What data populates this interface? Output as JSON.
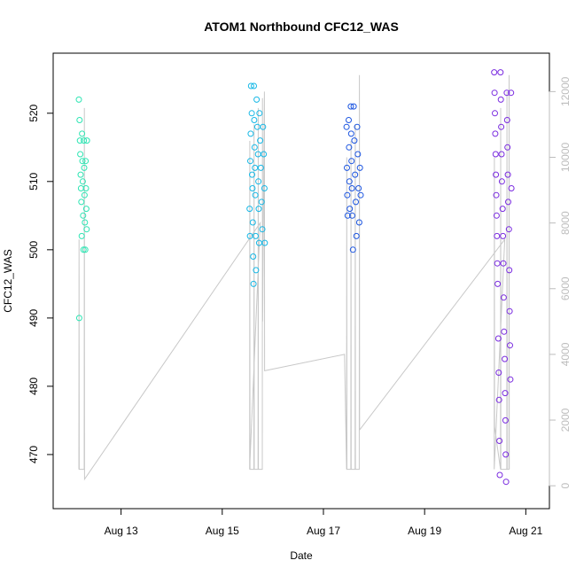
{
  "chart_data": {
    "type": "scatter",
    "title": "ATOM1 Northbound CFC12_WAS",
    "xlabel": "Date",
    "ylabel": "CFC12_WAS",
    "xlim": [
      "2016-08-11T20:00",
      "2016-08-21T07:00"
    ],
    "ylim": [
      463.5,
      527.5
    ],
    "y_ticks": [
      470,
      480,
      490,
      500,
      510,
      520
    ],
    "x_ticks": [
      {
        "label": "Aug 13",
        "date": "2016-08-13"
      },
      {
        "label": "Aug 15",
        "date": "2016-08-15"
      },
      {
        "label": "Aug 17",
        "date": "2016-08-17"
      },
      {
        "label": "Aug 19",
        "date": "2016-08-19"
      },
      {
        "label": "Aug 21",
        "date": "2016-08-21"
      }
    ],
    "y2_ticks": [
      0,
      2000,
      4000,
      6000,
      8000,
      10000,
      12000
    ],
    "y2lim": [
      -400,
      12900
    ],
    "y2_series": {
      "name": "",
      "color": "#c8c8c8",
      "points": [
        [
          "2016-08-12T04:00",
          500
        ],
        [
          "2016-08-12T04:05",
          7500
        ],
        [
          "2016-08-12T04:10",
          500
        ],
        [
          "2016-08-12T06:30",
          500
        ],
        [
          "2016-08-12T06:35",
          11500
        ],
        [
          "2016-08-12T06:40",
          200
        ],
        [
          "2016-08-15T18:00",
          8000
        ],
        [
          "2016-08-15T13:00",
          500
        ],
        [
          "2016-08-15T13:05",
          10500
        ],
        [
          "2016-08-15T13:10",
          500
        ],
        [
          "2016-08-15T15:00",
          500
        ],
        [
          "2016-08-15T15:05",
          11000
        ],
        [
          "2016-08-15T15:10",
          500
        ],
        [
          "2016-08-15T17:00",
          500
        ],
        [
          "2016-08-15T17:05",
          11500
        ],
        [
          "2016-08-15T17:10",
          500
        ],
        [
          "2016-08-15T19:00",
          500
        ],
        [
          "2016-08-15T19:05",
          11800
        ],
        [
          "2016-08-15T19:10",
          5000
        ],
        [
          "2016-08-15T20:00",
          12000
        ],
        [
          "2016-08-15T20:05",
          3500
        ],
        [
          "2016-08-17T10:00",
          4000
        ],
        [
          "2016-08-17T11:00",
          500
        ],
        [
          "2016-08-17T11:05",
          10000
        ],
        [
          "2016-08-17T11:10",
          500
        ],
        [
          "2016-08-17T13:00",
          500
        ],
        [
          "2016-08-17T13:05",
          10500
        ],
        [
          "2016-08-17T13:10",
          500
        ],
        [
          "2016-08-17T15:00",
          500
        ],
        [
          "2016-08-17T15:05",
          11000
        ],
        [
          "2016-08-17T15:10",
          500
        ],
        [
          "2016-08-17T17:00",
          500
        ],
        [
          "2016-08-17T17:05",
          12500
        ],
        [
          "2016-08-17T17:10",
          1700
        ],
        [
          "2016-08-20T14:00",
          7500
        ],
        [
          "2016-08-20T09:00",
          500
        ],
        [
          "2016-08-20T09:05",
          10000
        ],
        [
          "2016-08-20T09:10",
          1800
        ],
        [
          "2016-08-20T12:00",
          500
        ],
        [
          "2016-08-20T12:05",
          11500
        ],
        [
          "2016-08-20T12:10",
          500
        ],
        [
          "2016-08-20T15:00",
          500
        ],
        [
          "2016-08-20T15:05",
          12000
        ],
        [
          "2016-08-20T15:10",
          500
        ],
        [
          "2016-08-20T16:00",
          500
        ],
        [
          "2016-08-20T16:05",
          12500
        ],
        [
          "2016-08-20T16:10",
          500
        ]
      ]
    },
    "series": [
      {
        "color": "#2de5b3",
        "points": [
          [
            "2016-08-12T04:00",
            522
          ],
          [
            "2016-08-12T04:10",
            490
          ],
          [
            "2016-08-12T04:20",
            519
          ],
          [
            "2016-08-12T04:30",
            516
          ],
          [
            "2016-08-12T04:40",
            514
          ],
          [
            "2016-08-12T04:50",
            511
          ],
          [
            "2016-08-12T05:00",
            509
          ],
          [
            "2016-08-12T05:10",
            507
          ],
          [
            "2016-08-12T05:20",
            502
          ],
          [
            "2016-08-12T05:30",
            517
          ],
          [
            "2016-08-12T05:40",
            513
          ],
          [
            "2016-08-12T05:50",
            510
          ],
          [
            "2016-08-12T06:00",
            505
          ],
          [
            "2016-08-12T06:10",
            500
          ],
          [
            "2016-08-12T06:20",
            516
          ],
          [
            "2016-08-12T06:30",
            512
          ],
          [
            "2016-08-12T06:40",
            508
          ],
          [
            "2016-08-12T06:50",
            504
          ],
          [
            "2016-08-12T07:00",
            500
          ],
          [
            "2016-08-12T07:10",
            513
          ],
          [
            "2016-08-12T07:20",
            509
          ],
          [
            "2016-08-12T07:30",
            506
          ],
          [
            "2016-08-12T07:40",
            503
          ],
          [
            "2016-08-12T07:50",
            516
          ]
        ]
      },
      {
        "color": "#16b8e6",
        "points": [
          [
            "2016-08-15T13:00",
            506
          ],
          [
            "2016-08-15T13:10",
            502
          ],
          [
            "2016-08-15T13:20",
            513
          ],
          [
            "2016-08-15T13:30",
            517
          ],
          [
            "2016-08-15T13:40",
            524
          ],
          [
            "2016-08-15T14:00",
            520
          ],
          [
            "2016-08-15T14:10",
            511
          ],
          [
            "2016-08-15T14:20",
            509
          ],
          [
            "2016-08-15T14:30",
            504
          ],
          [
            "2016-08-15T14:40",
            499
          ],
          [
            "2016-08-15T14:50",
            495
          ],
          [
            "2016-08-15T15:00",
            524
          ],
          [
            "2016-08-15T15:10",
            519
          ],
          [
            "2016-08-15T15:20",
            515
          ],
          [
            "2016-08-15T15:30",
            512
          ],
          [
            "2016-08-15T15:40",
            508
          ],
          [
            "2016-08-15T15:50",
            502
          ],
          [
            "2016-08-15T16:00",
            497
          ],
          [
            "2016-08-15T16:20",
            522
          ],
          [
            "2016-08-15T16:40",
            518
          ],
          [
            "2016-08-15T17:00",
            514
          ],
          [
            "2016-08-15T17:10",
            510
          ],
          [
            "2016-08-15T17:20",
            506
          ],
          [
            "2016-08-15T17:30",
            501
          ],
          [
            "2016-08-15T17:40",
            520
          ],
          [
            "2016-08-15T18:00",
            516
          ],
          [
            "2016-08-15T18:20",
            512
          ],
          [
            "2016-08-15T18:40",
            507
          ],
          [
            "2016-08-15T19:00",
            503
          ],
          [
            "2016-08-15T19:20",
            518
          ],
          [
            "2016-08-15T19:40",
            514
          ],
          [
            "2016-08-15T20:00",
            509
          ],
          [
            "2016-08-15T20:10",
            501
          ]
        ]
      },
      {
        "color": "#1c55e0",
        "points": [
          [
            "2016-08-17T11:00",
            518
          ],
          [
            "2016-08-17T11:10",
            512
          ],
          [
            "2016-08-17T11:20",
            508
          ],
          [
            "2016-08-17T11:30",
            505
          ],
          [
            "2016-08-17T12:00",
            519
          ],
          [
            "2016-08-17T12:10",
            515
          ],
          [
            "2016-08-17T12:20",
            510
          ],
          [
            "2016-08-17T12:30",
            506
          ],
          [
            "2016-08-17T13:00",
            521
          ],
          [
            "2016-08-17T13:10",
            517
          ],
          [
            "2016-08-17T13:20",
            513
          ],
          [
            "2016-08-17T13:30",
            509
          ],
          [
            "2016-08-17T13:40",
            505
          ],
          [
            "2016-08-17T14:00",
            500
          ],
          [
            "2016-08-17T14:20",
            521
          ],
          [
            "2016-08-17T14:40",
            516
          ],
          [
            "2016-08-17T15:00",
            511
          ],
          [
            "2016-08-17T15:20",
            507
          ],
          [
            "2016-08-17T15:40",
            502
          ],
          [
            "2016-08-17T16:00",
            518
          ],
          [
            "2016-08-17T16:20",
            514
          ],
          [
            "2016-08-17T16:40",
            509
          ],
          [
            "2016-08-17T17:00",
            504
          ],
          [
            "2016-08-17T17:20",
            512
          ],
          [
            "2016-08-17T17:40",
            508
          ]
        ]
      },
      {
        "color": "#7a2be0",
        "points": [
          [
            "2016-08-20T09:00",
            526
          ],
          [
            "2016-08-20T09:10",
            523
          ],
          [
            "2016-08-20T09:20",
            520
          ],
          [
            "2016-08-20T09:30",
            517
          ],
          [
            "2016-08-20T09:40",
            514
          ],
          [
            "2016-08-20T09:50",
            511
          ],
          [
            "2016-08-20T10:00",
            508
          ],
          [
            "2016-08-20T10:10",
            505
          ],
          [
            "2016-08-20T10:20",
            502
          ],
          [
            "2016-08-20T10:30",
            498
          ],
          [
            "2016-08-20T10:40",
            495
          ],
          [
            "2016-08-20T11:00",
            487
          ],
          [
            "2016-08-20T11:10",
            482
          ],
          [
            "2016-08-20T11:20",
            478
          ],
          [
            "2016-08-20T11:30",
            472
          ],
          [
            "2016-08-20T11:40",
            467
          ],
          [
            "2016-08-20T12:00",
            526
          ],
          [
            "2016-08-20T12:10",
            522
          ],
          [
            "2016-08-20T12:20",
            518
          ],
          [
            "2016-08-20T12:30",
            514
          ],
          [
            "2016-08-20T12:40",
            510
          ],
          [
            "2016-08-20T13:00",
            506
          ],
          [
            "2016-08-20T13:10",
            502
          ],
          [
            "2016-08-20T13:20",
            498
          ],
          [
            "2016-08-20T13:30",
            493
          ],
          [
            "2016-08-20T13:40",
            488
          ],
          [
            "2016-08-20T14:00",
            484
          ],
          [
            "2016-08-20T14:10",
            479
          ],
          [
            "2016-08-20T14:20",
            475
          ],
          [
            "2016-08-20T14:30",
            470
          ],
          [
            "2016-08-20T14:40",
            466
          ],
          [
            "2016-08-20T15:00",
            523
          ],
          [
            "2016-08-20T15:10",
            519
          ],
          [
            "2016-08-20T15:20",
            515
          ],
          [
            "2016-08-20T15:30",
            511
          ],
          [
            "2016-08-20T15:40",
            507
          ],
          [
            "2016-08-20T16:00",
            503
          ],
          [
            "2016-08-20T16:10",
            497
          ],
          [
            "2016-08-20T16:20",
            491
          ],
          [
            "2016-08-20T16:30",
            486
          ],
          [
            "2016-08-20T16:40",
            481
          ],
          [
            "2016-08-20T17:00",
            523
          ],
          [
            "2016-08-20T17:10",
            509
          ]
        ]
      }
    ]
  }
}
